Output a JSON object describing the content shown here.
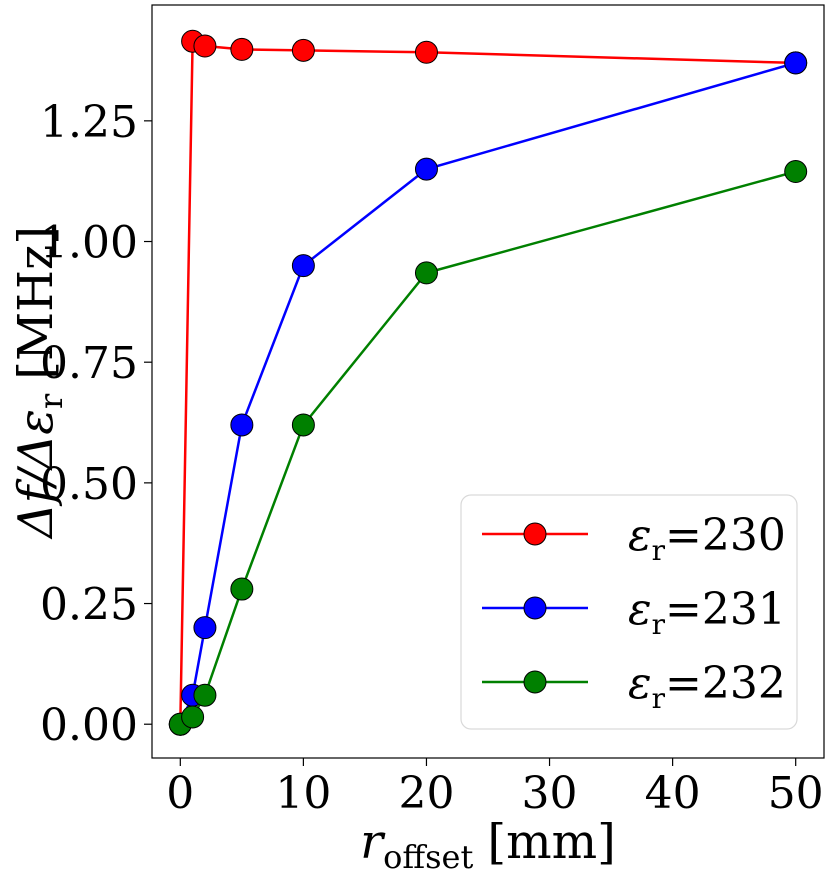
{
  "chart_data": {
    "type": "line",
    "title": "",
    "x": [
      0,
      1,
      2,
      5,
      10,
      20,
      50
    ],
    "xticks": [
      0,
      10,
      20,
      30,
      40,
      50
    ],
    "yticks": [
      0.0,
      0.25,
      0.5,
      0.75,
      1.0,
      1.25
    ],
    "xtick_labels": [
      "0",
      "10",
      "20",
      "30",
      "40",
      "50"
    ],
    "ytick_labels": [
      "0.00",
      "0.25",
      "0.50",
      "0.75",
      "1.00",
      "1.25"
    ],
    "xlim": [
      -2.3,
      52.3
    ],
    "ylim": [
      -0.07,
      1.49
    ],
    "xlabel": {
      "main": "r",
      "sub": "offset",
      "unit": "[mm]"
    },
    "ylabel": {
      "text": "Δf/Δε",
      "sub": "r",
      "unit": "[MHz]"
    },
    "legend_position": "lower-right",
    "series": [
      {
        "name": "ε_r=230",
        "label_main": "ε",
        "label_sub": "r",
        "label_value": "=230",
        "color": "#ff0000",
        "values": [
          0.0,
          1.415,
          1.405,
          1.398,
          1.396,
          1.392,
          1.37
        ]
      },
      {
        "name": "ε_r=231",
        "label_main": "ε",
        "label_sub": "r",
        "label_value": "=231",
        "color": "#0000ff",
        "values": [
          0.0,
          0.06,
          0.2,
          0.62,
          0.95,
          1.15,
          1.37
        ]
      },
      {
        "name": "ε_r=232",
        "label_main": "ε",
        "label_sub": "r",
        "label_value": "=232",
        "color": "#008000",
        "values": [
          0.0,
          0.015,
          0.06,
          0.28,
          0.62,
          0.935,
          1.145
        ]
      }
    ]
  }
}
